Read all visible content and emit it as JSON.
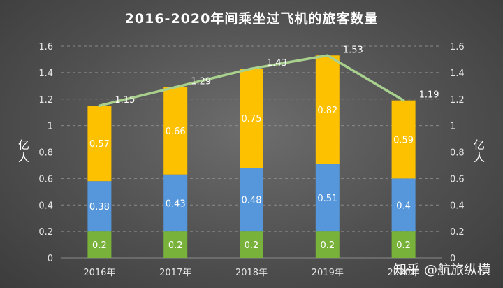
{
  "chart_data": {
    "type": "bar",
    "title": "2016-2020年间乘坐过飞机的旅客数量",
    "categories": [
      "2016年",
      "2017年",
      "2018年",
      "2019年",
      "2020年"
    ],
    "stacked": true,
    "series": [
      {
        "values": [
          0.2,
          0.2,
          0.2,
          0.2,
          0.2
        ],
        "color": "#78b23a",
        "data_labels": [
          "0.2",
          "0.2",
          "0.2",
          "0.2",
          "0.2"
        ]
      },
      {
        "values": [
          0.38,
          0.43,
          0.48,
          0.51,
          0.4
        ],
        "color": "#5597da",
        "data_labels": [
          "0.38",
          "0.43",
          "0.48",
          "0.51",
          "0.4"
        ]
      },
      {
        "values": [
          0.57,
          0.66,
          0.75,
          0.82,
          0.59
        ],
        "color": "#fdc100",
        "data_labels": [
          "0.57",
          "0.66",
          "0.75",
          "0.82",
          "0.59"
        ]
      }
    ],
    "line": {
      "type": "line",
      "values": [
        1.15,
        1.29,
        1.43,
        1.53,
        1.19
      ],
      "color": "#a9d18e",
      "data_labels": [
        "1.15",
        "1.29",
        "1.43",
        "1.53",
        "1.19"
      ]
    },
    "y_ticks": [
      "0",
      "0.2",
      "0.4",
      "0.6",
      "0.8",
      "1",
      "1.2",
      "1.4",
      "1.6"
    ],
    "ylim": [
      0,
      1.6
    ],
    "ylabel": "亿人",
    "y2label": "亿人",
    "grid": true,
    "legend": "none"
  },
  "watermark": "知乎 @航旅纵横"
}
